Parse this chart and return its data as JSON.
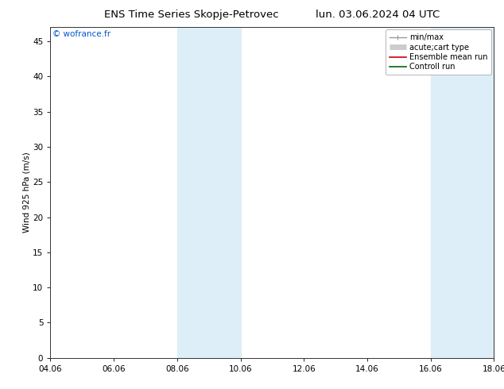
{
  "title_left": "ENS Time Series Skopje-Petrovec",
  "title_right": "lun. 03.06.2024 04 UTC",
  "ylabel": "Wind 925 hPa (m/s)",
  "watermark": "© wofrance.fr",
  "watermark_color": "#0055cc",
  "background_color": "#ffffff",
  "plot_bg_color": "#ffffff",
  "ylim": [
    0,
    47
  ],
  "yticks": [
    0,
    5,
    10,
    15,
    20,
    25,
    30,
    35,
    40,
    45
  ],
  "xlim": [
    0,
    14
  ],
  "xtick_labels": [
    "04.06",
    "06.06",
    "08.06",
    "10.06",
    "12.06",
    "14.06",
    "16.06",
    "18.06"
  ],
  "xtick_positions": [
    0,
    2,
    4,
    6,
    8,
    10,
    12,
    14
  ],
  "shade_bands": [
    {
      "xmin": 4.0,
      "xmax": 6.0,
      "color": "#ddeef8"
    },
    {
      "xmin": 12.0,
      "xmax": 14.0,
      "color": "#ddeef8"
    }
  ],
  "legend_items": [
    {
      "label": "min/max",
      "color": "#999999",
      "lw": 1.0,
      "style": "line_with_caps"
    },
    {
      "label": "acute;cart type",
      "color": "#cccccc",
      "lw": 5,
      "style": "thick_line"
    },
    {
      "label": "Ensemble mean run",
      "color": "#cc0000",
      "lw": 1.2,
      "style": "line"
    },
    {
      "label": "Controll run",
      "color": "#006600",
      "lw": 1.2,
      "style": "line"
    }
  ],
  "spine_color": "#333333",
  "tick_label_fontsize": 7.5,
  "ylabel_fontsize": 7.5,
  "title_fontsize": 9.5,
  "watermark_fontsize": 7.5,
  "legend_fontsize": 7.0
}
